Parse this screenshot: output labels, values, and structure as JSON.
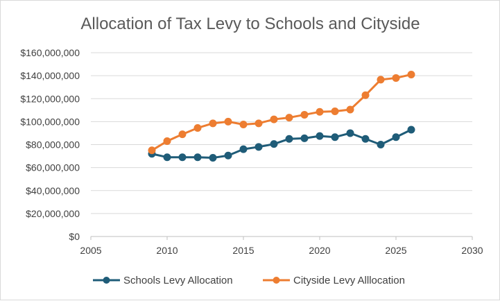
{
  "chart_data": {
    "type": "line",
    "title": "Allocation of Tax  Levy to Schools and Cityside",
    "xlabel": "",
    "ylabel": "",
    "xlim": [
      2005,
      2030
    ],
    "ylim": [
      0,
      160000000
    ],
    "x_ticks": [
      2005,
      2010,
      2015,
      2020,
      2025,
      2030
    ],
    "y_ticks": [
      0,
      20000000,
      40000000,
      60000000,
      80000000,
      100000000,
      120000000,
      140000000,
      160000000
    ],
    "y_tick_labels": [
      "$0",
      "$20,000,000",
      "$40,000,000",
      "$60,000,000",
      "$80,000,000",
      "$100,000,000",
      "$120,000,000",
      "$140,000,000",
      "$160,000,000"
    ],
    "grid": "horizontal",
    "legend_position": "bottom",
    "x": [
      2009,
      2010,
      2011,
      2012,
      2013,
      2014,
      2015,
      2016,
      2017,
      2018,
      2019,
      2020,
      2021,
      2022,
      2023,
      2024,
      2025,
      2026
    ],
    "series": [
      {
        "name": "Schools Levy Allocation",
        "color": "#1f5c78",
        "values": [
          72000000,
          69000000,
          69000000,
          69000000,
          68500000,
          70500000,
          76000000,
          78000000,
          80500000,
          85000000,
          85500000,
          87500000,
          86500000,
          90000000,
          85000000,
          80000000,
          86500000,
          93000000
        ]
      },
      {
        "name": "Cityside Levy Alllocation",
        "color": "#ed7d31",
        "values": [
          75000000,
          83000000,
          89000000,
          94500000,
          98500000,
          100000000,
          97500000,
          98500000,
          102000000,
          103500000,
          106000000,
          108500000,
          109000000,
          110500000,
          123000000,
          136500000,
          138000000,
          141000000
        ]
      }
    ]
  }
}
